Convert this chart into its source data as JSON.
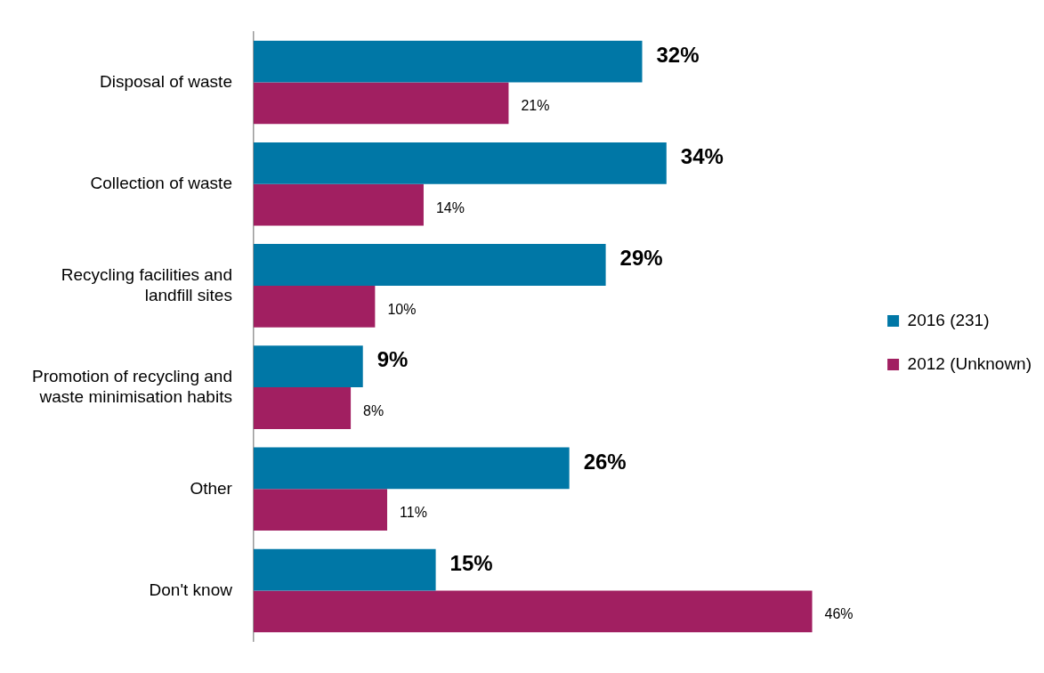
{
  "chart_data": {
    "type": "bar",
    "orientation": "horizontal",
    "categories": [
      "Disposal of waste",
      "Collection of waste",
      "Recycling facilities and landfill sites",
      "Promotion of recycling and waste minimisation habits",
      "Other",
      "Don't know"
    ],
    "series": [
      {
        "name": "2016 (231)",
        "color": "#0077a6",
        "values": [
          32,
          34,
          29,
          9,
          26,
          15
        ],
        "value_labels": [
          "32%",
          "34%",
          "29%",
          "9%",
          "26%",
          "15%"
        ]
      },
      {
        "name": "2012 (Unknown)",
        "color": "#a11f61",
        "values": [
          21,
          14,
          10,
          8,
          11,
          46
        ],
        "value_labels": [
          "21%",
          "14%",
          "10%",
          "8%",
          "11%",
          "46%"
        ]
      }
    ],
    "tick_labels": "y",
    "grid": false,
    "legend": "right"
  }
}
